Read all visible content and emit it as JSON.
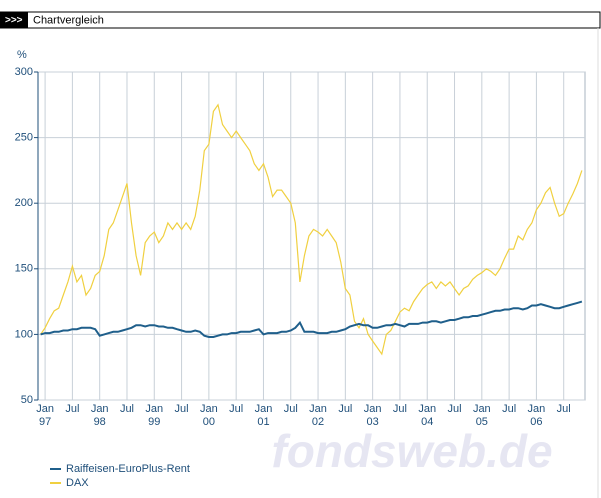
{
  "header": {
    "icon": ">>>",
    "title": "Chartvergleich"
  },
  "watermark": "fondsweb.de",
  "chart_data": {
    "type": "line",
    "ylabel": "%",
    "ylim": [
      50,
      300
    ],
    "yticks": [
      50,
      100,
      150,
      200,
      250,
      300
    ],
    "grid": true,
    "xlim": [
      1996.87,
      2006.89
    ],
    "xticks": [
      {
        "value": 1997.0,
        "label": "Jan",
        "year": "97"
      },
      {
        "value": 1997.5,
        "label": "Jul"
      },
      {
        "value": 1998.0,
        "label": "Jan",
        "year": "98"
      },
      {
        "value": 1998.5,
        "label": "Jul"
      },
      {
        "value": 1999.0,
        "label": "Jan",
        "year": "99"
      },
      {
        "value": 1999.5,
        "label": "Jul"
      },
      {
        "value": 2000.0,
        "label": "Jan",
        "year": "00"
      },
      {
        "value": 2000.5,
        "label": "Jul"
      },
      {
        "value": 2001.0,
        "label": "Jan",
        "year": "01"
      },
      {
        "value": 2001.5,
        "label": "Jul"
      },
      {
        "value": 2002.0,
        "label": "Jan",
        "year": "02"
      },
      {
        "value": 2002.5,
        "label": "Jul"
      },
      {
        "value": 2003.0,
        "label": "Jan",
        "year": "03"
      },
      {
        "value": 2003.5,
        "label": "Jul"
      },
      {
        "value": 2004.0,
        "label": "Jan",
        "year": "04"
      },
      {
        "value": 2004.5,
        "label": "Jul"
      },
      {
        "value": 2005.0,
        "label": "Jan",
        "year": "05"
      },
      {
        "value": 2005.5,
        "label": "Jul"
      },
      {
        "value": 2006.0,
        "label": "Jan",
        "year": "06"
      },
      {
        "value": 2006.5,
        "label": "Jul"
      }
    ],
    "x": [
      1996.917,
      1997.0,
      1997.083,
      1997.167,
      1997.25,
      1997.333,
      1997.417,
      1997.5,
      1997.583,
      1997.667,
      1997.75,
      1997.833,
      1997.917,
      1998.0,
      1998.083,
      1998.167,
      1998.25,
      1998.333,
      1998.417,
      1998.5,
      1998.583,
      1998.667,
      1998.75,
      1998.833,
      1998.917,
      1999.0,
      1999.083,
      1999.167,
      1999.25,
      1999.333,
      1999.417,
      1999.5,
      1999.583,
      1999.667,
      1999.75,
      1999.833,
      1999.917,
      2000.0,
      2000.083,
      2000.167,
      2000.25,
      2000.333,
      2000.417,
      2000.5,
      2000.583,
      2000.667,
      2000.75,
      2000.833,
      2000.917,
      2001.0,
      2001.083,
      2001.167,
      2001.25,
      2001.333,
      2001.417,
      2001.5,
      2001.583,
      2001.667,
      2001.75,
      2001.833,
      2001.917,
      2002.0,
      2002.083,
      2002.167,
      2002.25,
      2002.333,
      2002.417,
      2002.5,
      2002.583,
      2002.667,
      2002.75,
      2002.833,
      2002.917,
      2003.0,
      2003.083,
      2003.167,
      2003.25,
      2003.333,
      2003.417,
      2003.5,
      2003.583,
      2003.667,
      2003.75,
      2003.833,
      2003.917,
      2004.0,
      2004.083,
      2004.167,
      2004.25,
      2004.333,
      2004.417,
      2004.5,
      2004.583,
      2004.667,
      2004.75,
      2004.833,
      2004.917,
      2005.0,
      2005.083,
      2005.167,
      2005.25,
      2005.333,
      2005.417,
      2005.5,
      2005.583,
      2005.667,
      2005.75,
      2005.833,
      2005.917,
      2006.0,
      2006.083,
      2006.167,
      2006.25,
      2006.333,
      2006.417,
      2006.5,
      2006.583,
      2006.667,
      2006.75,
      2006.833
    ],
    "series": [
      {
        "name": "Raiffeisen-EuroPlus-Rent",
        "color": "#1f5f8b",
        "values": [
          100,
          101,
          101,
          102,
          102,
          103,
          103,
          104,
          104,
          105,
          105,
          105,
          104,
          99,
          100,
          101,
          102,
          102,
          103,
          104,
          105,
          107,
          107,
          106,
          107,
          107,
          106,
          106,
          105,
          105,
          104,
          103,
          102,
          102,
          103,
          102,
          99,
          98,
          98,
          99,
          100,
          100,
          101,
          101,
          102,
          102,
          102,
          103,
          104,
          100,
          101,
          101,
          101,
          102,
          102,
          103,
          105,
          109,
          102,
          102,
          102,
          101,
          101,
          101,
          102,
          102,
          103,
          104,
          106,
          107,
          108,
          107,
          107,
          105,
          105,
          106,
          107,
          107,
          108,
          107,
          106,
          108,
          108,
          108,
          109,
          109,
          110,
          110,
          109,
          110,
          111,
          111,
          112,
          113,
          113,
          114,
          114,
          115,
          116,
          117,
          118,
          118,
          119,
          119,
          120,
          120,
          119,
          120,
          122,
          122,
          123,
          122,
          121,
          120,
          120,
          121,
          122,
          123,
          124,
          125
        ]
      },
      {
        "name": "DAX",
        "color": "#f0d040",
        "values": [
          100,
          105,
          112,
          118,
          120,
          130,
          140,
          152,
          140,
          145,
          130,
          135,
          145,
          148,
          160,
          180,
          185,
          195,
          205,
          215,
          185,
          160,
          145,
          170,
          175,
          178,
          170,
          175,
          185,
          180,
          185,
          180,
          185,
          180,
          190,
          210,
          240,
          245,
          270,
          275,
          260,
          255,
          250,
          255,
          250,
          245,
          240,
          230,
          225,
          230,
          220,
          205,
          210,
          210,
          205,
          200,
          185,
          140,
          160,
          175,
          180,
          178,
          175,
          180,
          175,
          170,
          155,
          135,
          130,
          110,
          105,
          112,
          100,
          95,
          90,
          85,
          100,
          103,
          110,
          117,
          120,
          118,
          125,
          130,
          135,
          138,
          140,
          135,
          140,
          137,
          140,
          135,
          130,
          135,
          137,
          142,
          145,
          147,
          150,
          148,
          145,
          150,
          158,
          165,
          165,
          175,
          172,
          180,
          185,
          195,
          200,
          208,
          212,
          200,
          190,
          192,
          200,
          207,
          215,
          225
        ]
      }
    ]
  }
}
